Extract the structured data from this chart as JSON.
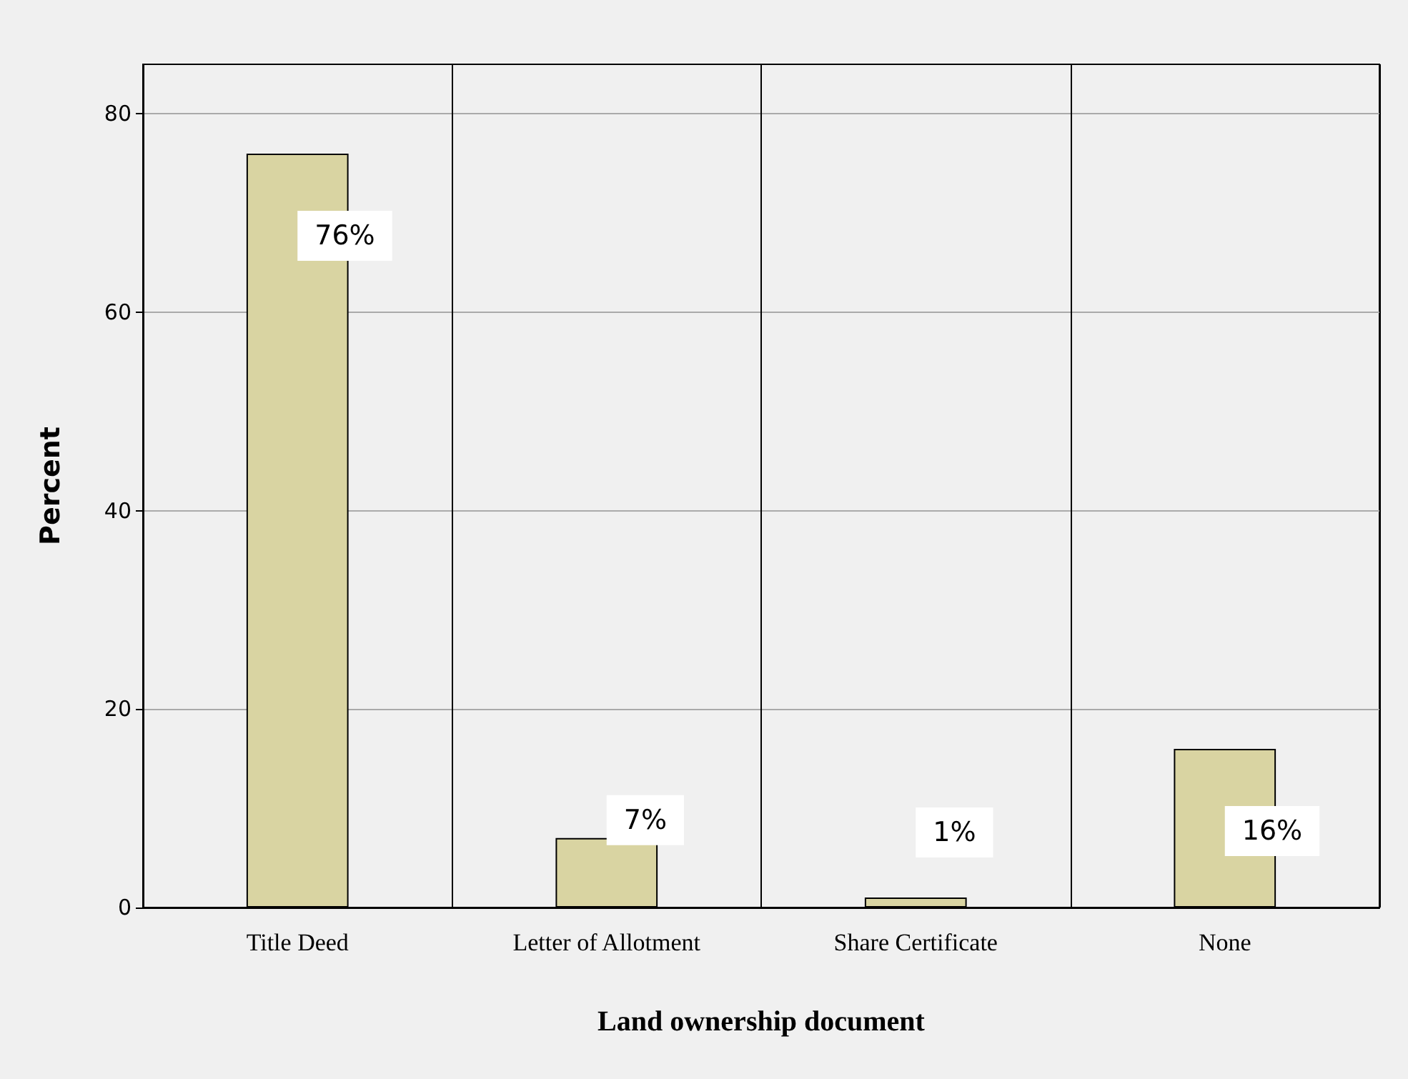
{
  "chart_data": {
    "type": "bar",
    "xlabel": "Land ownership document",
    "ylabel": "Percent",
    "categories": [
      "Title Deed",
      "Letter of Allotment",
      "Share Certificate",
      "None"
    ],
    "values": [
      76,
      7,
      1,
      16
    ],
    "value_labels": [
      "76%",
      "7%",
      "1%",
      "16%"
    ],
    "color": "#d9d4a2",
    "ylim": [
      0,
      85
    ],
    "yticks": [
      0,
      20,
      40,
      60,
      80
    ],
    "grid": true
  }
}
